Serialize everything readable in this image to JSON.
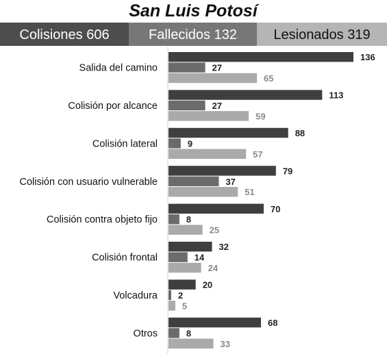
{
  "chart_data": {
    "type": "bar",
    "orientation": "horizontal",
    "title": "San Luis Potosí",
    "summary": [
      {
        "label": "Colisiones",
        "value": "606",
        "color": "#4d4d4d",
        "text_color": "#ffffff"
      },
      {
        "label": "Fallecidos",
        "value": "132",
        "color": "#777777",
        "text_color": "#ffffff"
      },
      {
        "label": "Lesionados",
        "value": "319",
        "color": "#b5b5b5",
        "text_color": "#111111"
      }
    ],
    "categories": [
      "Salida del camino",
      "Colisión por alcance",
      "Colisión lateral",
      "Colisión con usuario vulnerable",
      "Colisión contra objeto fijo",
      "Colisión frontal",
      "Volcadura",
      "Otros"
    ],
    "series": [
      {
        "values": [
          136,
          113,
          88,
          79,
          70,
          32,
          20,
          68
        ],
        "color": "#3f3f3f",
        "label_color": "#222222"
      },
      {
        "values": [
          27,
          27,
          9,
          37,
          8,
          14,
          2,
          8
        ],
        "color": "#6b6b6b",
        "label_color": "#222222"
      },
      {
        "values": [
          65,
          59,
          57,
          51,
          25,
          24,
          5,
          33
        ],
        "color": "#aaaaaa",
        "label_color": "#8a8a8a"
      }
    ],
    "xlim": [
      0,
      136
    ],
    "grid": false
  }
}
